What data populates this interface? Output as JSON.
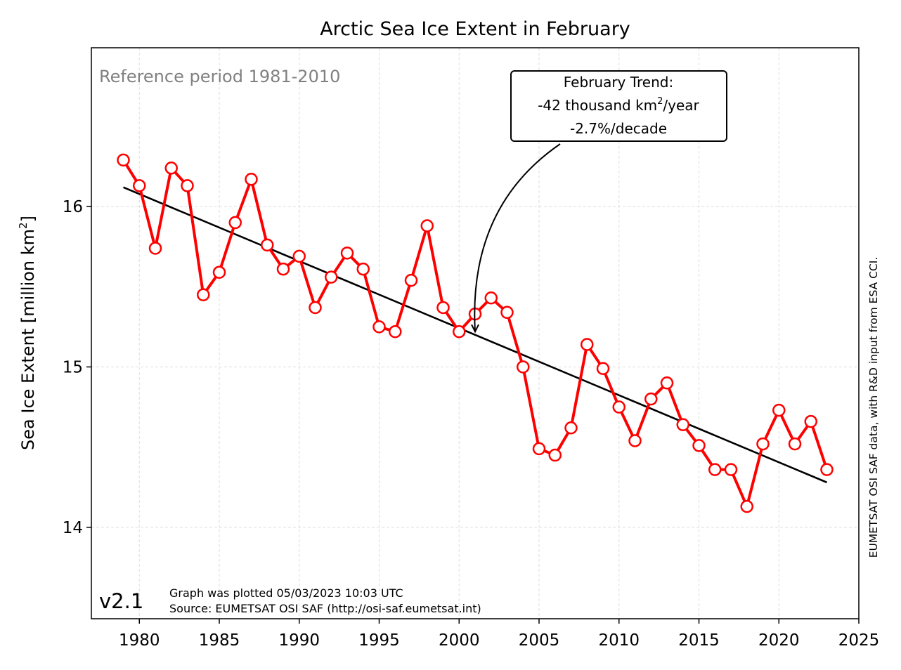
{
  "chart_data": {
    "type": "line",
    "title": "Arctic Sea Ice Extent in February",
    "ylabel_main": "Sea Ice Extent [million km",
    "ylabel_sup": "2",
    "ylabel_end": "]",
    "xlabel": "",
    "xlim": [
      1977,
      2025
    ],
    "ylim": [
      13.43,
      16.99
    ],
    "xticks": [
      1980,
      1985,
      1990,
      1995,
      2000,
      2005,
      2010,
      2015,
      2020,
      2025
    ],
    "yticks": [
      14,
      15,
      16
    ],
    "grid": true,
    "series": [
      {
        "color": "#ff0000",
        "x": [
          1979,
          1980,
          1981,
          1982,
          1983,
          1984,
          1985,
          1986,
          1987,
          1988,
          1989,
          1990,
          1991,
          1992,
          1993,
          1994,
          1995,
          1996,
          1997,
          1998,
          1999,
          2000,
          2001,
          2002,
          2003,
          2004,
          2005,
          2006,
          2007,
          2008,
          2009,
          2010,
          2011,
          2012,
          2013,
          2014,
          2015,
          2016,
          2017,
          2018,
          2019,
          2020,
          2021,
          2022,
          2023
        ],
        "y": [
          16.29,
          16.13,
          15.74,
          16.24,
          16.13,
          15.45,
          15.59,
          15.9,
          16.17,
          15.76,
          15.61,
          15.69,
          15.37,
          15.56,
          15.71,
          15.61,
          15.25,
          15.22,
          15.54,
          15.88,
          15.37,
          15.22,
          15.33,
          15.43,
          15.34,
          15.0,
          14.49,
          14.45,
          14.62,
          15.14,
          14.99,
          14.75,
          14.54,
          14.8,
          14.9,
          14.64,
          14.51,
          14.36,
          14.36,
          14.13,
          14.52,
          14.73,
          14.52,
          14.66,
          14.36
        ]
      },
      {
        "type": "trend",
        "color": "#000000",
        "x": [
          1979,
          2023
        ],
        "y": [
          16.12,
          14.28
        ]
      }
    ],
    "annotation": {
      "line1": "February Trend:",
      "line2_pre": "-42 thousand km",
      "line2_sup": "2",
      "line2_post": "/year",
      "line3": "-2.7%/decade",
      "arrow_x": 2001,
      "arrow_y": 15.22
    },
    "reference_text": "Reference period 1981-2010",
    "version": "v2.1",
    "footer_line1": "Graph was plotted 05/03/2023 10:03 UTC",
    "footer_line2": "Source: EUMETSAT OSI SAF (http://osi-saf.eumetsat.int)",
    "side_credit": "EUMETSAT OSI SAF data, with R&D input from ESA CCI."
  }
}
